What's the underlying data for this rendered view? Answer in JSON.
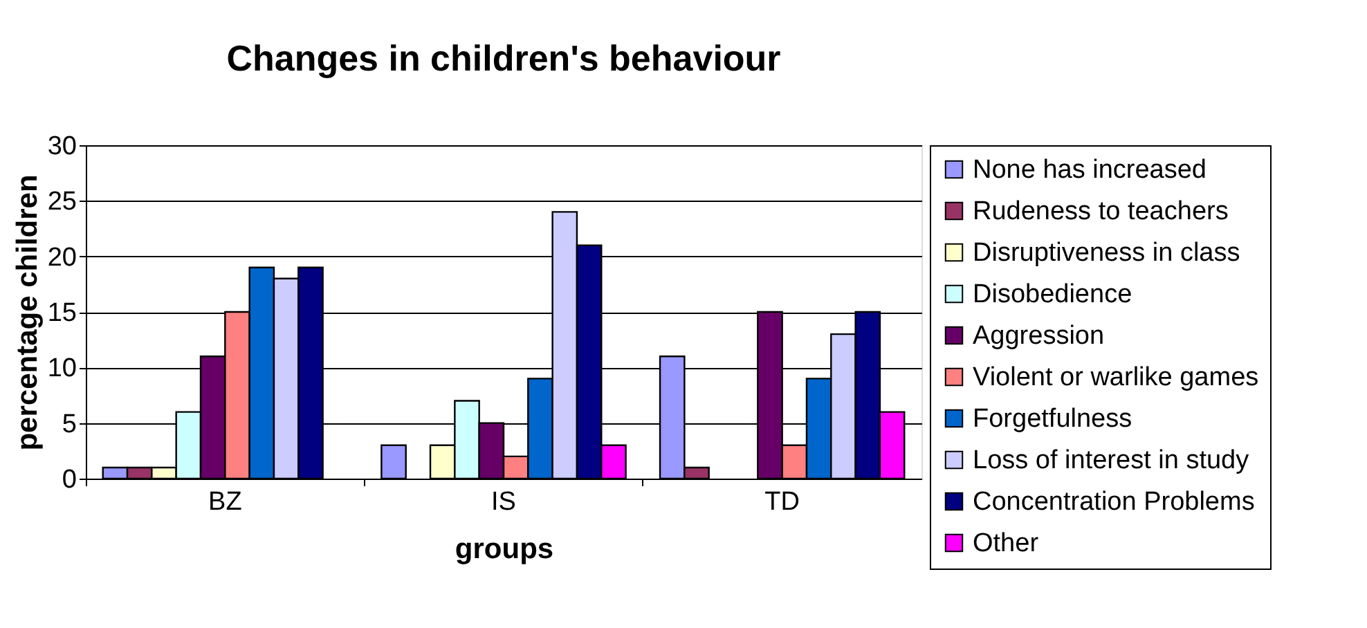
{
  "chart_data": {
    "type": "bar",
    "title": "Changes in children's behaviour",
    "xlabel": "groups",
    "ylabel": "percentage children",
    "categories": [
      "BZ",
      "IS",
      "TD"
    ],
    "series": [
      {
        "name": "None has increased",
        "color": "#9999ff",
        "values": [
          1,
          3,
          11
        ]
      },
      {
        "name": "Rudeness to teachers",
        "color": "#993366",
        "values": [
          1,
          null,
          1
        ]
      },
      {
        "name": "Disruptiveness in class",
        "color": "#ffffcc",
        "values": [
          1,
          3,
          null
        ]
      },
      {
        "name": "Disobedience",
        "color": "#ccffff",
        "values": [
          6,
          7,
          null
        ]
      },
      {
        "name": "Aggression",
        "color": "#660066",
        "values": [
          11,
          5,
          15
        ]
      },
      {
        "name": "Violent or warlike games",
        "color": "#ff8080",
        "values": [
          15,
          2,
          3
        ]
      },
      {
        "name": "Forgetfulness",
        "color": "#0066cc",
        "values": [
          19,
          9,
          9
        ]
      },
      {
        "name": "Loss of interest in study",
        "color": "#ccccff",
        "values": [
          18,
          24,
          13
        ]
      },
      {
        "name": "Concentration Problems",
        "color": "#000080",
        "values": [
          19,
          21,
          15
        ]
      },
      {
        "name": "Other",
        "color": "#ff00ff",
        "values": [
          null,
          3,
          6
        ]
      }
    ],
    "ylim": [
      0,
      30
    ],
    "yticks": [
      0,
      5,
      10,
      15,
      20,
      25,
      30
    ],
    "grid": "y",
    "legend": "right"
  }
}
